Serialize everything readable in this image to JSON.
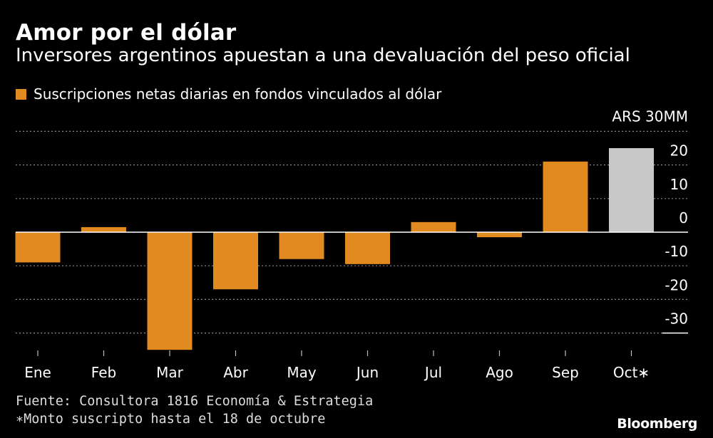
{
  "header": {
    "title": "Amor por el dólar",
    "subtitle": "Inversores argentinos apuestan a una devaluación del peso oficial"
  },
  "chart_data": {
    "type": "bar",
    "legend": {
      "label": "Suscripciones netas diarias en fondos vinculados al dólar",
      "placement": "top-left"
    },
    "unit_label": "ARS 30MM",
    "categories": [
      "Ene",
      "Feb",
      "Mar",
      "Abr",
      "May",
      "Jun",
      "Jul",
      "Ago",
      "Sep",
      "Oct∗"
    ],
    "values": [
      -9,
      1.5,
      -35,
      -17,
      -8,
      -9.5,
      3,
      -1.5,
      21,
      25
    ],
    "highlight_partial_index": 9,
    "y_ticks": [
      30,
      20,
      10,
      0,
      -10,
      -20,
      -30
    ],
    "y_tick_labels": [
      "ARS 30MM",
      "20",
      "10",
      "0",
      "-10",
      "-20",
      "-30"
    ],
    "ylim": [
      -36,
      30
    ],
    "y_axis_position": "right",
    "grid": true,
    "colors": {
      "main": "#e08a1f",
      "partial": "#c8c8c8",
      "background": "#000000",
      "text": "#ffffff",
      "grid": "#8a8a8a"
    }
  },
  "footer": {
    "source": "Fuente: Consultora 1816 Economía & Estrategia",
    "note": "∗Monto suscripto hasta el 18 de octubre",
    "brand": "Bloomberg"
  }
}
